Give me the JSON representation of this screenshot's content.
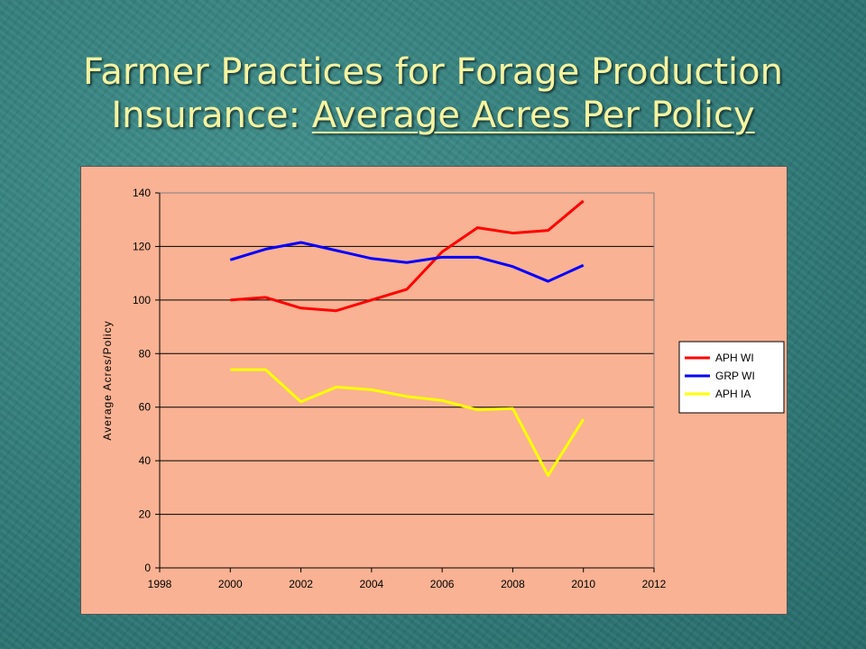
{
  "slide": {
    "title_line1": "Farmer Practices for Forage Production",
    "title_line2_prefix": "Insurance: ",
    "title_line2_underlined": "Average Acres Per Policy"
  },
  "colors": {
    "background": "#2f7a78",
    "title": "#f6f3a0",
    "chart_panel": "#f9b293"
  },
  "chart_data": {
    "type": "line",
    "title": "",
    "xlabel": "",
    "ylabel": "Average Acres/Policy",
    "xlim": [
      1998,
      2012
    ],
    "ylim": [
      0,
      140
    ],
    "xticks": [
      1998,
      2000,
      2002,
      2004,
      2006,
      2008,
      2010,
      2012
    ],
    "yticks": [
      0,
      20,
      40,
      60,
      80,
      100,
      120,
      140
    ],
    "grid": "horizontal",
    "legend_position": "right",
    "x": [
      2000,
      2001,
      2002,
      2003,
      2004,
      2005,
      2006,
      2007,
      2008,
      2009,
      2010
    ],
    "series": [
      {
        "name": "APH WI",
        "color": "#ff0000",
        "values": [
          100,
          101,
          97,
          96,
          100,
          104,
          118,
          127,
          125,
          126,
          137
        ]
      },
      {
        "name": "GRP WI",
        "color": "#0000ff",
        "values": [
          115,
          119,
          121.5,
          118.5,
          115.5,
          114,
          116,
          116,
          112.5,
          107,
          113
        ]
      },
      {
        "name": "APH IA",
        "color": "#ffff00",
        "values": [
          74,
          74,
          62,
          67.5,
          66.5,
          64,
          62.5,
          59,
          59.5,
          34.5,
          55.5
        ]
      }
    ]
  }
}
